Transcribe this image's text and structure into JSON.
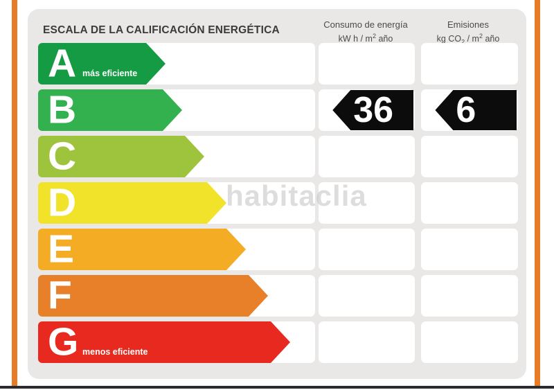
{
  "title": "ESCALA DE LA CALIFICACIÓN ENERGÉTICA",
  "watermark": "habitaclia",
  "accent_frame_color": "#e87c26",
  "columns": [
    {
      "label": "Consumo de energía",
      "unit": {
        "p1": "kW h / m",
        "sup": "2",
        "p2": " año"
      }
    },
    {
      "label": "Emisiones",
      "unit": {
        "p1": "kg CO",
        "sub": "2",
        "p2": " / m",
        "sup": "2",
        "p3": " año"
      }
    }
  ],
  "rows": [
    {
      "grade": "A",
      "note": "más eficiente",
      "color": "#169b45",
      "width_pct": 46,
      "values": [
        "",
        ""
      ]
    },
    {
      "grade": "B",
      "note": "",
      "color": "#33b14e",
      "width_pct": 52,
      "values": [
        "36",
        "6"
      ]
    },
    {
      "grade": "C",
      "note": "",
      "color": "#9ec43d",
      "width_pct": 60,
      "values": [
        "",
        ""
      ]
    },
    {
      "grade": "D",
      "note": "",
      "color": "#f1e32a",
      "width_pct": 68,
      "values": [
        "",
        ""
      ]
    },
    {
      "grade": "E",
      "note": "",
      "color": "#f5ac25",
      "width_pct": 75,
      "values": [
        "",
        ""
      ]
    },
    {
      "grade": "F",
      "note": "",
      "color": "#e8802a",
      "width_pct": 83,
      "values": [
        "",
        ""
      ]
    },
    {
      "grade": "G",
      "note": "menos eficiente",
      "color": "#e7291f",
      "width_pct": 91,
      "values": [
        "",
        ""
      ]
    }
  ],
  "badge_color": "#0c0c0c",
  "chart_data": {
    "type": "bar",
    "title": "ESCALA DE LA CALIFICACIÓN ENERGÉTICA",
    "categories": [
      "A",
      "B",
      "C",
      "D",
      "E",
      "F",
      "G"
    ],
    "bar_widths_pct": [
      46,
      52,
      60,
      68,
      75,
      83,
      91
    ],
    "bar_colors": [
      "#169b45",
      "#33b14e",
      "#9ec43d",
      "#f1e32a",
      "#f5ac25",
      "#e8802a",
      "#e7291f"
    ],
    "rated_grade": "B",
    "series": [
      {
        "name": "Consumo de energía (kW h / m2 año)",
        "values": [
          null,
          36,
          null,
          null,
          null,
          null,
          null
        ]
      },
      {
        "name": "Emisiones (kg CO2 / m2 año)",
        "values": [
          null,
          6,
          null,
          null,
          null,
          null,
          null
        ]
      }
    ],
    "annotations": [
      "A = más eficiente",
      "G = menos eficiente"
    ],
    "legend_position": "top",
    "grid": false
  }
}
